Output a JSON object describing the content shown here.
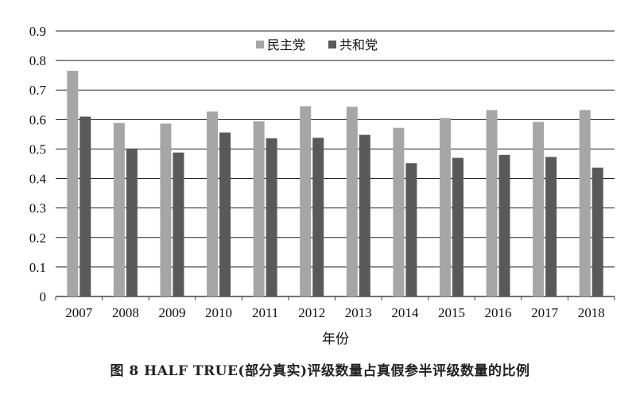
{
  "chart_data": {
    "type": "bar",
    "categories": [
      "2007",
      "2008",
      "2009",
      "2010",
      "2011",
      "2012",
      "2013",
      "2014",
      "2015",
      "2016",
      "2017",
      "2018"
    ],
    "series": [
      {
        "name": "民主党",
        "color": "#a6a6a6",
        "values": [
          0.765,
          0.588,
          0.586,
          0.627,
          0.594,
          0.645,
          0.643,
          0.572,
          0.605,
          0.632,
          0.592,
          0.632
        ]
      },
      {
        "name": "共和党",
        "color": "#595959",
        "values": [
          0.61,
          0.498,
          0.488,
          0.556,
          0.536,
          0.538,
          0.548,
          0.452,
          0.47,
          0.48,
          0.473,
          0.437
        ]
      }
    ],
    "yticks": [
      "0",
      "0.1",
      "0.2",
      "0.3",
      "0.4",
      "0.5",
      "0.6",
      "0.7",
      "0.8",
      "0.9"
    ],
    "ylim": [
      0,
      0.9
    ],
    "xlabel": "年份",
    "ylabel": "",
    "grid": true,
    "legend_position": "top-center",
    "caption": "图 8    HALF TRUE(部分真实)评级数量占真假参半评级数量的比例"
  }
}
